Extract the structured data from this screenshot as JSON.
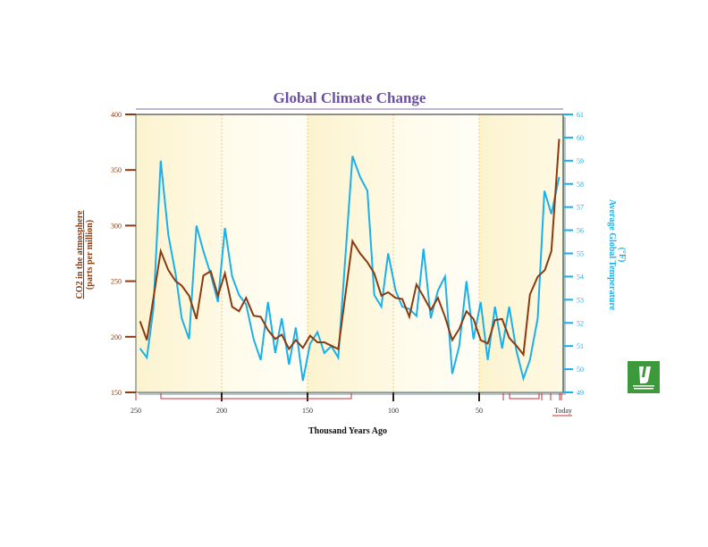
{
  "chart_data": {
    "type": "line",
    "title": "Global Climate Change",
    "xlabel": "Thousand Years Ago",
    "ylabel_left": "CO2 in the atmosphere",
    "ylabel_left_sub": "(parts per million)",
    "ylabel_right": "Average Global Temperature",
    "ylabel_right_sub": "(°F)",
    "xlim": [
      250,
      0
    ],
    "ylim_left": [
      150,
      400
    ],
    "ylim_right": [
      49,
      61
    ],
    "x_ticks": [
      250,
      200,
      150,
      100,
      50,
      0
    ],
    "x_tick_labels": [
      "250",
      "200",
      "150",
      "100",
      "50",
      "Today"
    ],
    "y_left_ticks": [
      400,
      350,
      300,
      250,
      200,
      150
    ],
    "y_left_tick_labels": [
      "400",
      "350",
      "300",
      "250",
      "200",
      "150"
    ],
    "y_right_ticks": [
      61,
      60,
      59,
      58,
      57,
      56,
      55,
      54,
      53,
      52,
      51,
      50,
      49
    ],
    "y_right_tick_labels": [
      "61",
      "60",
      "59",
      "58",
      "57",
      "56",
      "55",
      "54",
      "53",
      "52",
      "51",
      "50",
      "49"
    ],
    "grid": "vertical dashed at 200, 150, 100, 50",
    "colors": {
      "co2": "#8b3a10",
      "temperature": "#1ab0e8",
      "title": "#6b4fa0",
      "background": "#fdf6d8",
      "logo": "#3d9a3a"
    },
    "series": [
      {
        "axis": "left",
        "x": [
          247.6,
          243.6,
          235.5,
          231.1,
          226.8,
          223.3,
          219,
          214.7,
          210.7,
          206.4,
          202.2,
          198.1,
          193.9,
          189.9,
          185.8,
          181.4,
          177.3,
          173,
          168.8,
          165,
          160.8,
          156.8,
          152.7,
          148.5,
          144.2,
          140.2,
          136.1,
          132.1,
          123.8,
          119.4,
          115.1,
          111.1,
          107,
          103,
          98.7,
          94.8,
          90.7,
          86.5,
          82.4,
          78.2,
          74,
          69.9,
          65.7,
          61.6,
          57.4,
          53.3,
          49.1,
          45,
          40.8,
          36.6,
          32.5,
          28.3,
          24.2,
          20.4,
          15.9,
          11.7,
          7.9,
          3.4
        ],
        "values": [
          214,
          197,
          277,
          260,
          250,
          246,
          237,
          216,
          255,
          259,
          237,
          257,
          227,
          223,
          235,
          219,
          218,
          206,
          198,
          202,
          189,
          197,
          190,
          201,
          195,
          195,
          192,
          189,
          286,
          275,
          267,
          257,
          237,
          240,
          235,
          234,
          218,
          247,
          236,
          224,
          235,
          218,
          197,
          207,
          223,
          216,
          197,
          194,
          215,
          216,
          199,
          192,
          184,
          238,
          254,
          260,
          277,
          378
        ]
      },
      {
        "axis": "right",
        "x": [
          247.6,
          243.6,
          239.8,
          235.5,
          231.1,
          226.8,
          223.3,
          219,
          214.7,
          210.7,
          206.4,
          202.2,
          198.1,
          193.9,
          189.9,
          185.8,
          181.4,
          177.3,
          173,
          168.8,
          165,
          160.8,
          156.8,
          152.7,
          148.5,
          144.2,
          140.2,
          136.1,
          132.1,
          123.8,
          119.4,
          115.1,
          111.1,
          107,
          103,
          98.7,
          94.8,
          90.7,
          86.5,
          82.4,
          78.2,
          74,
          69.9,
          65.7,
          61.6,
          57.4,
          53.3,
          49.1,
          45,
          40.8,
          36.6,
          32.5,
          28.3,
          24.2,
          20.4,
          15.9,
          12,
          7.9,
          3.4
        ],
        "values": [
          50.9,
          50.5,
          52.6,
          59.0,
          55.8,
          54.1,
          52.2,
          51.3,
          56.2,
          55.1,
          54.1,
          52.9,
          56.1,
          54.0,
          53.2,
          52.8,
          51.3,
          50.4,
          52.9,
          50.7,
          52.2,
          50.2,
          51.8,
          49.5,
          51.1,
          51.6,
          50.7,
          51.0,
          50.5,
          59.2,
          58.3,
          57.7,
          53.2,
          52.7,
          55.0,
          53.4,
          52.7,
          52.6,
          52.3,
          55.2,
          52.2,
          53.4,
          54.0,
          49.8,
          51.0,
          53.8,
          51.3,
          52.9,
          50.4,
          52.7,
          50.9,
          52.7,
          50.8,
          49.6,
          50.4,
          52.2,
          57.7,
          56.7,
          58.3
        ]
      }
    ]
  },
  "logo": {
    "icon": "publisher-logo"
  }
}
